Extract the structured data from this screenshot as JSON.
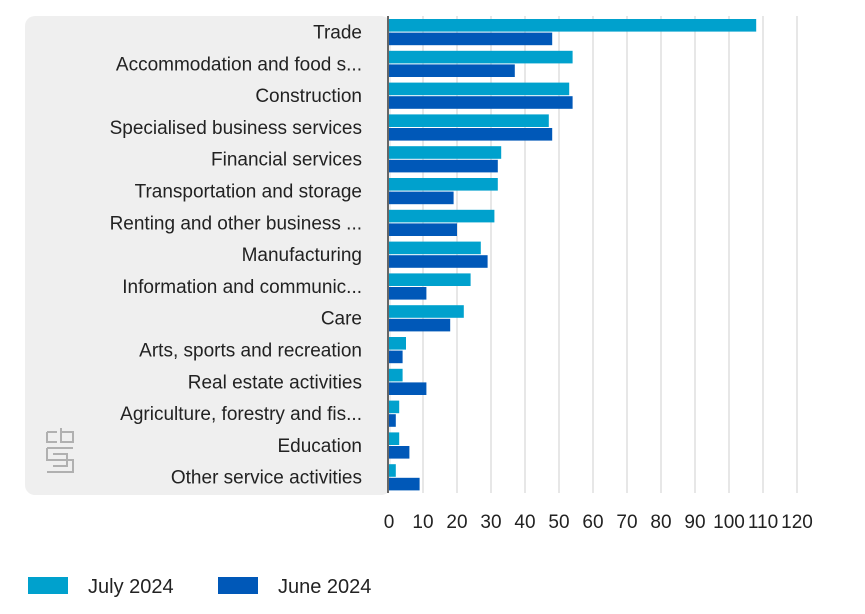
{
  "chart_data": {
    "type": "bar",
    "orientation": "horizontal",
    "categories": [
      "Trade",
      "Accommodation and food s...",
      "Construction",
      "Specialised business services",
      "Financial services",
      "Transportation and storage",
      "Renting and other business ...",
      "Manufacturing",
      "Information and communic...",
      "Care",
      "Arts, sports and recreation",
      "Real estate activities",
      "Agriculture, forestry and fis...",
      "Education",
      "Other service activities"
    ],
    "series": [
      {
        "name": "July 2024",
        "color": "#00a1cd",
        "values": [
          108,
          54,
          53,
          47,
          33,
          32,
          31,
          27,
          24,
          22,
          5,
          4,
          3,
          3,
          2
        ]
      },
      {
        "name": "June 2024",
        "color": "#0058b8",
        "values": [
          48,
          37,
          54,
          48,
          32,
          19,
          20,
          29,
          11,
          18,
          4,
          11,
          2,
          6,
          9
        ]
      }
    ],
    "xlim": [
      0,
      120
    ],
    "xticks": [
      "0",
      "10",
      "20",
      "30",
      "40",
      "50",
      "60",
      "70",
      "80",
      "90",
      "100",
      "110",
      "120"
    ],
    "grid": true,
    "legend_position": "bottom-left",
    "logo": "cbs"
  }
}
